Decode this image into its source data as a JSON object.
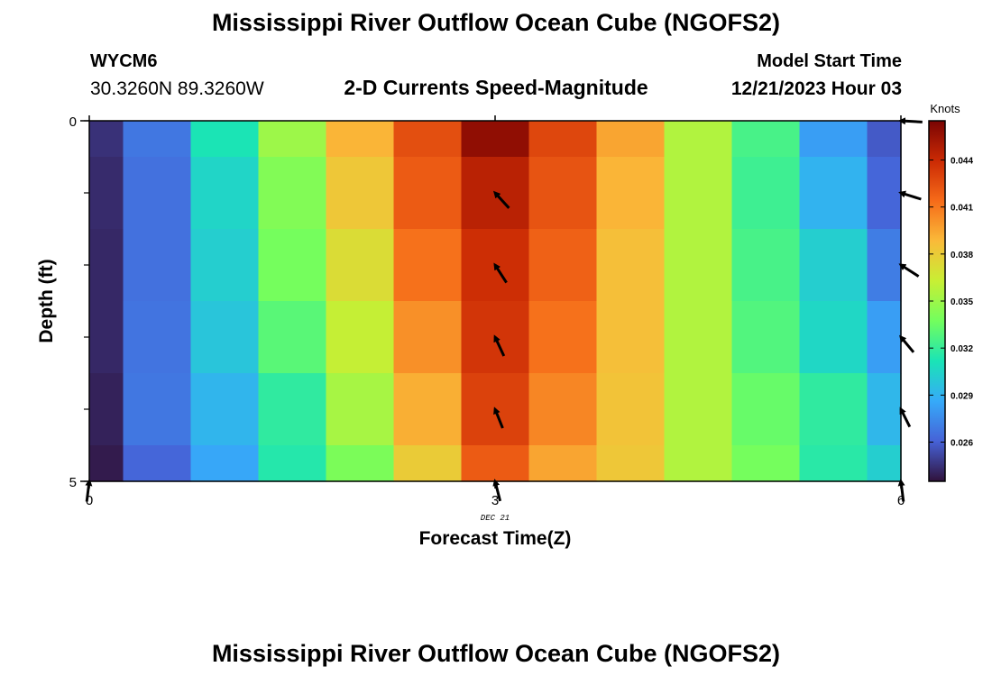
{
  "header": {
    "title": "Mississippi River Outflow Ocean Cube (NGOFS2)",
    "station_id": "WYCM6",
    "station_coords": "30.3260N  89.3260W",
    "subtitle": "2-D Currents Speed-Magnitude",
    "model_start_label": "Model Start Time",
    "model_start_value": "12/21/2023 Hour 03"
  },
  "footer": {
    "title": "Mississippi River Outflow Ocean Cube (NGOFS2)"
  },
  "chart_data": {
    "type": "heatmap",
    "title": "2-D Currents Speed-Magnitude",
    "xlabel": "Forecast Time(Z)",
    "ylabel": "Depth (ft)",
    "x_ticks": [
      "0",
      "3",
      "6"
    ],
    "x_date_label": "DEC 21",
    "y_ticks": [
      "0",
      "5"
    ],
    "xlim": [
      0,
      6
    ],
    "ylim": [
      0,
      5
    ],
    "x": [
      0,
      0.5,
      1,
      1.5,
      2,
      2.5,
      3,
      3.5,
      4,
      4.5,
      5,
      5.5,
      6
    ],
    "depth": [
      0,
      1,
      2,
      3,
      4,
      5
    ],
    "values": [
      [
        0.0245,
        0.0268,
        0.0312,
        0.035,
        0.039,
        0.0425,
        0.0458,
        0.0428,
        0.0395,
        0.0356,
        0.0325,
        0.0282,
        0.0258
      ],
      [
        0.0243,
        0.0266,
        0.0305,
        0.0342,
        0.0382,
        0.042,
        0.0445,
        0.0423,
        0.039,
        0.0356,
        0.0322,
        0.029,
        0.0262
      ],
      [
        0.0242,
        0.0266,
        0.0302,
        0.0338,
        0.0372,
        0.0412,
        0.0438,
        0.0418,
        0.0386,
        0.0356,
        0.0325,
        0.0302,
        0.027
      ],
      [
        0.0242,
        0.0267,
        0.0298,
        0.033,
        0.0362,
        0.0402,
        0.0435,
        0.0412,
        0.0386,
        0.0356,
        0.0328,
        0.0306,
        0.0282
      ],
      [
        0.024,
        0.0268,
        0.0291,
        0.0318,
        0.0353,
        0.0392,
        0.043,
        0.0405,
        0.0384,
        0.0356,
        0.0334,
        0.0318,
        0.0292
      ],
      [
        0.0238,
        0.0262,
        0.0285,
        0.0315,
        0.034,
        0.038,
        0.042,
        0.0395,
        0.0382,
        0.0356,
        0.0338,
        0.0316,
        0.0302
      ]
    ],
    "vectors": [
      {
        "x": 3,
        "depth": 1,
        "u": -0.55,
        "v": 0.6
      },
      {
        "x": 3,
        "depth": 2,
        "u": -0.45,
        "v": 0.7
      },
      {
        "x": 3,
        "depth": 3,
        "u": -0.35,
        "v": 0.75
      },
      {
        "x": 3,
        "depth": 4,
        "u": -0.3,
        "v": 0.75
      },
      {
        "x": 3,
        "depth": 5,
        "u": -0.2,
        "v": 0.78
      },
      {
        "x": 6,
        "depth": 0,
        "u": -0.85,
        "v": 0.05
      },
      {
        "x": 6,
        "depth": 1,
        "u": -0.8,
        "v": 0.25
      },
      {
        "x": 6,
        "depth": 2,
        "u": -0.7,
        "v": 0.45
      },
      {
        "x": 6,
        "depth": 3,
        "u": -0.5,
        "v": 0.6
      },
      {
        "x": 6,
        "depth": 4,
        "u": -0.35,
        "v": 0.7
      },
      {
        "x": 6,
        "depth": 5,
        "u": -0.1,
        "v": 0.8
      },
      {
        "x": 0,
        "depth": 5,
        "u": 0.1,
        "v": 0.8
      }
    ],
    "colorbar": {
      "label": "Knots",
      "min": 0.0235,
      "max": 0.0465,
      "ticks": [
        0.026,
        0.029,
        0.032,
        0.035,
        0.038,
        0.041,
        0.044
      ],
      "tick_labels": [
        "0.026",
        "0.029",
        "0.032",
        "0.035",
        "0.038",
        "0.041",
        "0.044"
      ]
    },
    "colormap": [
      "#30123b",
      "#4662d7",
      "#36aaf9",
      "#1ae4b6",
      "#72fe5e",
      "#c8ef34",
      "#faba39",
      "#f66b19",
      "#cb2a04",
      "#7a0403"
    ]
  }
}
